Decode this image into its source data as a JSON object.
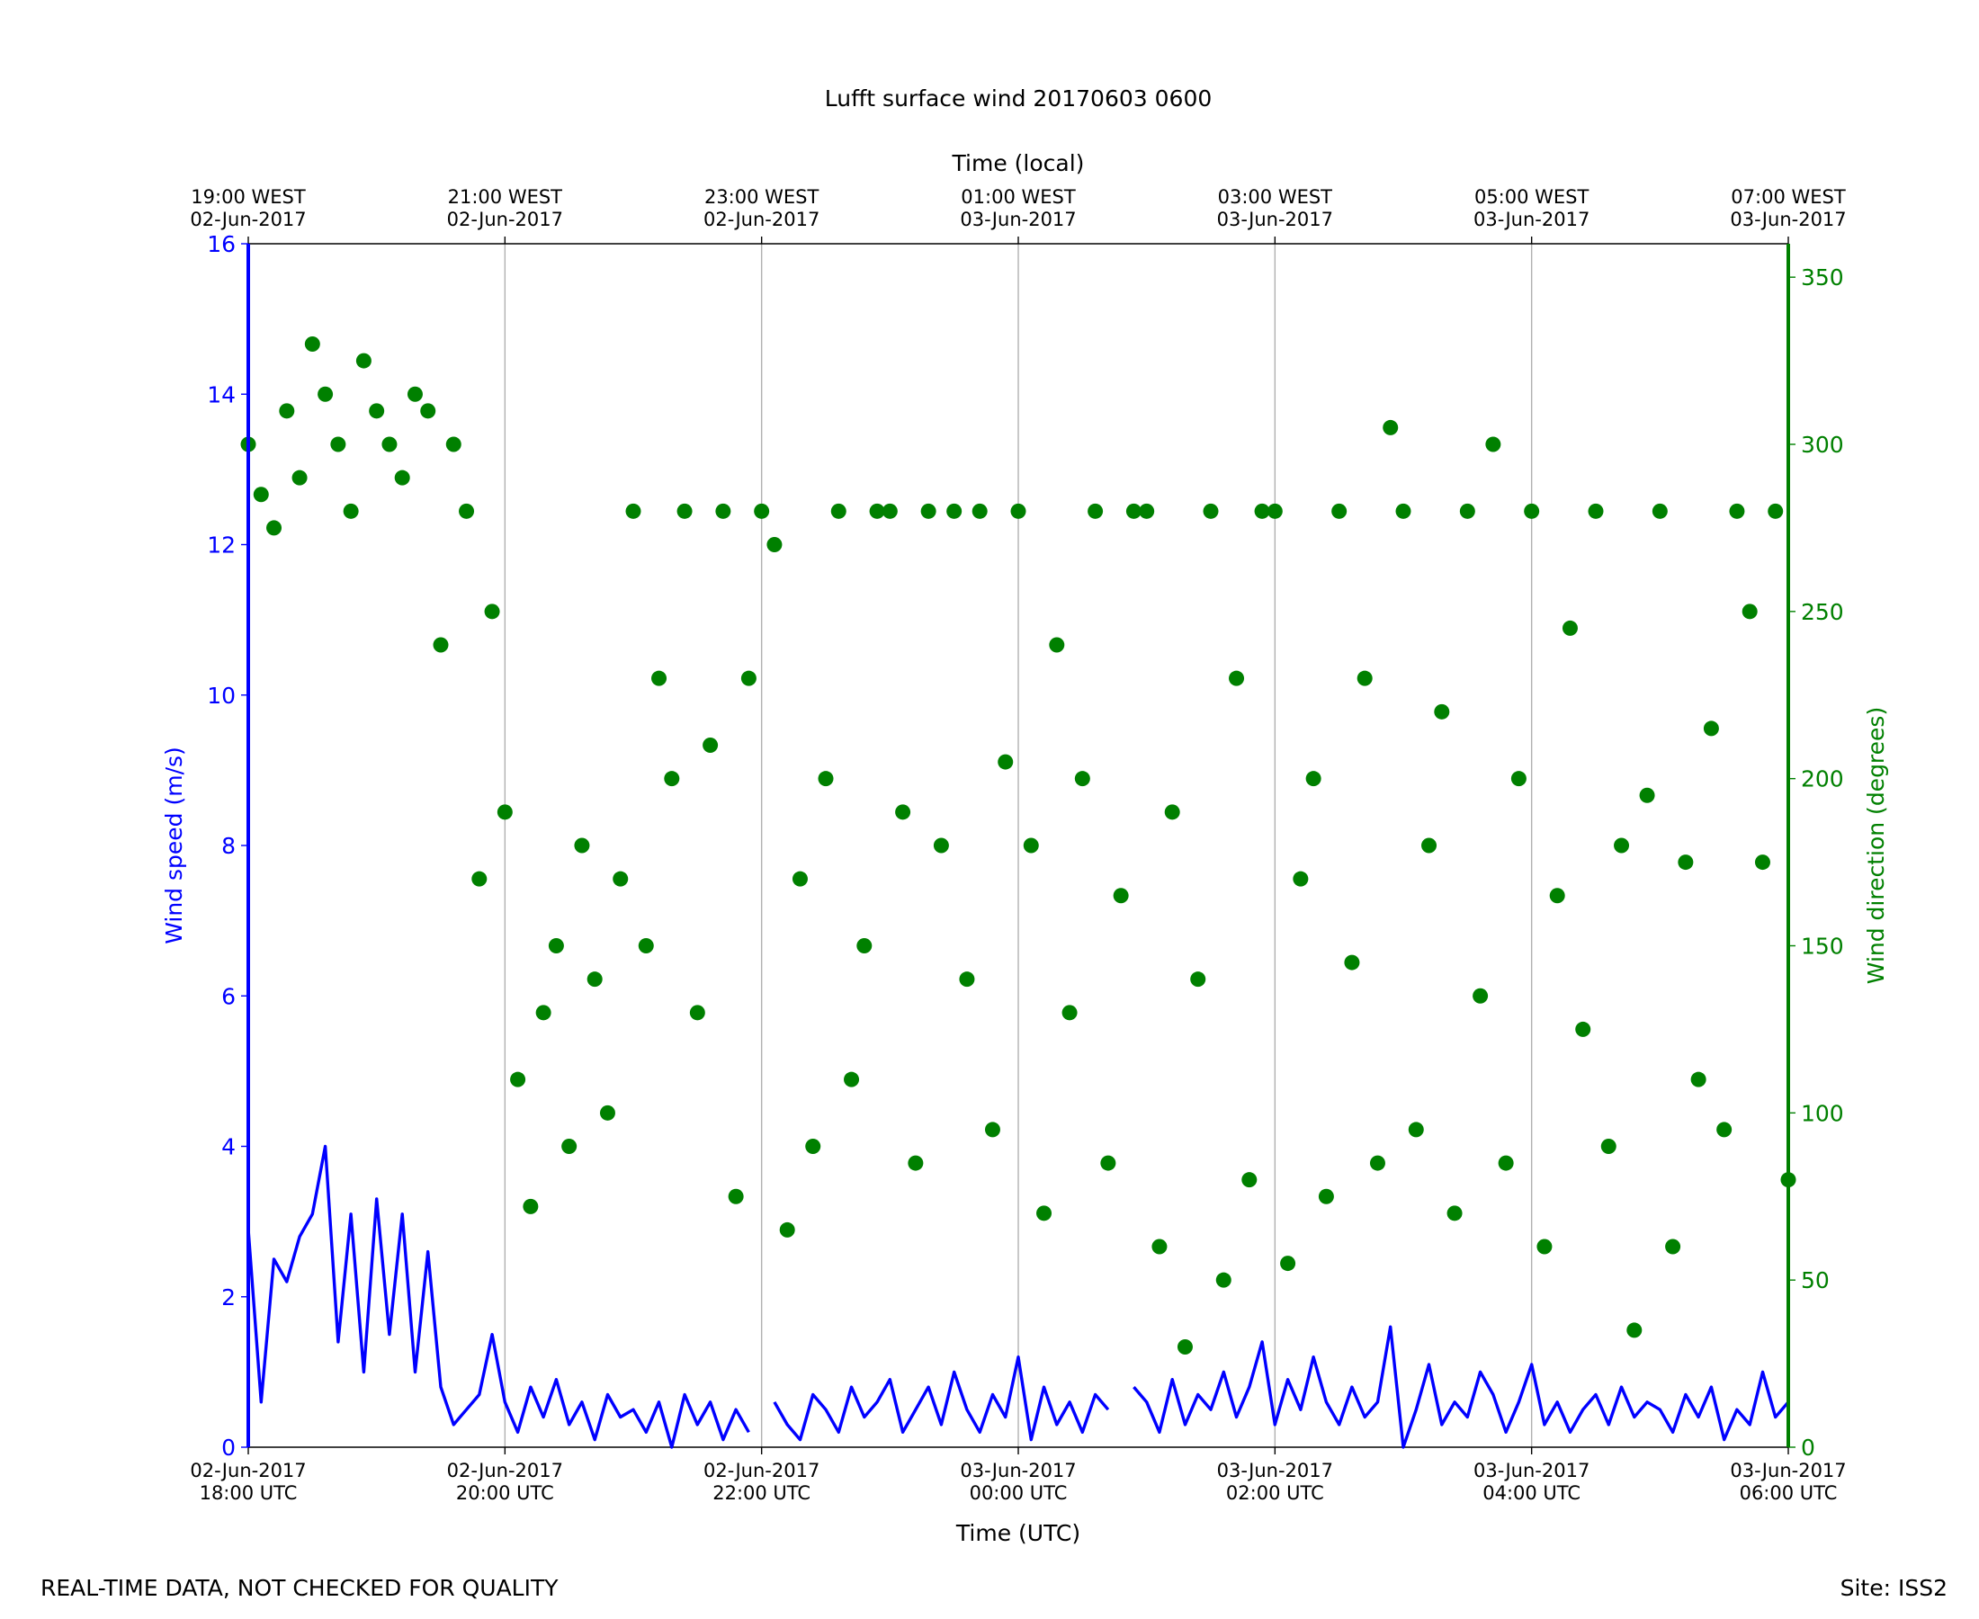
{
  "chart_data": {
    "type": "line",
    "title": "Lufft surface wind 20170603 0600",
    "xlabel": "Time (UTC)",
    "x2label": "Time (local)",
    "ylabel": "Wind speed (m/s)",
    "y2label": "Wind direction (degrees)",
    "footer_left": "REAL-TIME DATA, NOT CHECKED FOR QUALITY",
    "footer_right": "Site: ISS2",
    "xlim": [
      18,
      30
    ],
    "xticks": [
      {
        "value": 18,
        "label": "02-Jun-2017\n18:00 UTC"
      },
      {
        "value": 20,
        "label": "02-Jun-2017\n20:00 UTC"
      },
      {
        "value": 22,
        "label": "02-Jun-2017\n22:00 UTC"
      },
      {
        "value": 24,
        "label": "03-Jun-2017\n00:00 UTC"
      },
      {
        "value": 26,
        "label": "03-Jun-2017\n02:00 UTC"
      },
      {
        "value": 28,
        "label": "03-Jun-2017\n04:00 UTC"
      },
      {
        "value": 30,
        "label": "03-Jun-2017\n06:00 UTC"
      }
    ],
    "x2ticks": [
      {
        "value": 18,
        "label": "19:00 WEST\n02-Jun-2017"
      },
      {
        "value": 20,
        "label": "21:00 WEST\n02-Jun-2017"
      },
      {
        "value": 22,
        "label": "23:00 WEST\n02-Jun-2017"
      },
      {
        "value": 24,
        "label": "01:00 WEST\n03-Jun-2017"
      },
      {
        "value": 26,
        "label": "03:00 WEST\n03-Jun-2017"
      },
      {
        "value": 28,
        "label": "05:00 WEST\n03-Jun-2017"
      },
      {
        "value": 30,
        "label": "07:00 WEST\n03-Jun-2017"
      }
    ],
    "ylim": [
      0,
      16
    ],
    "yticks": [
      0,
      2,
      4,
      6,
      8,
      10,
      12,
      14,
      16
    ],
    "y2lim": [
      0,
      360
    ],
    "y2ticks": [
      0,
      50,
      100,
      150,
      200,
      250,
      300,
      350
    ],
    "grid": "x",
    "x": [
      18.0,
      18.1,
      18.2,
      18.3,
      18.4,
      18.5,
      18.6,
      18.7,
      18.8,
      18.9,
      19.0,
      19.1,
      19.2,
      19.3,
      19.4,
      19.5,
      19.6,
      19.7,
      19.8,
      19.9,
      20.0,
      20.1,
      20.2,
      20.3,
      20.4,
      20.5,
      20.6,
      20.7,
      20.8,
      20.9,
      21.0,
      21.1,
      21.2,
      21.3,
      21.4,
      21.5,
      21.6,
      21.7,
      21.8,
      21.9,
      22.0,
      22.1,
      22.2,
      22.3,
      22.4,
      22.5,
      22.6,
      22.7,
      22.8,
      22.9,
      23.0,
      23.1,
      23.2,
      23.3,
      23.4,
      23.5,
      23.6,
      23.7,
      23.8,
      23.9,
      24.0,
      24.1,
      24.2,
      24.3,
      24.4,
      24.5,
      24.6,
      24.7,
      24.8,
      24.9,
      25.0,
      25.1,
      25.2,
      25.3,
      25.4,
      25.5,
      25.6,
      25.7,
      25.8,
      25.9,
      26.0,
      26.1,
      26.2,
      26.3,
      26.4,
      26.5,
      26.6,
      26.7,
      26.8,
      26.9,
      27.0,
      27.1,
      27.2,
      27.3,
      27.4,
      27.5,
      27.6,
      27.7,
      27.8,
      27.9,
      28.0,
      28.1,
      28.2,
      28.3,
      28.4,
      28.5,
      28.6,
      28.7,
      28.8,
      28.9,
      29.0,
      29.1,
      29.2,
      29.3,
      29.4,
      29.5,
      29.6,
      29.7,
      29.8,
      29.9,
      30.0
    ],
    "series": [
      {
        "name": "Wind speed",
        "type": "line",
        "color": "#0000ff",
        "values": [
          2.9,
          0.6,
          2.5,
          2.2,
          2.8,
          3.1,
          4.0,
          1.4,
          3.1,
          1.0,
          3.3,
          1.5,
          3.1,
          1.0,
          2.6,
          0.8,
          0.3,
          0.5,
          0.7,
          1.5,
          0.6,
          0.2,
          0.8,
          0.4,
          0.9,
          0.3,
          0.6,
          0.1,
          0.7,
          0.4,
          0.5,
          0.2,
          0.6,
          0.0,
          0.7,
          0.3,
          0.6,
          0.1,
          0.5,
          0.2,
          null,
          0.6,
          0.3,
          0.1,
          0.7,
          0.5,
          0.2,
          0.8,
          0.4,
          0.6,
          0.9,
          0.2,
          0.5,
          0.8,
          0.3,
          1.0,
          0.5,
          0.2,
          0.7,
          0.4,
          1.2,
          0.1,
          0.8,
          0.3,
          0.6,
          0.2,
          0.7,
          0.5,
          null,
          0.8,
          0.6,
          0.2,
          0.9,
          0.3,
          0.7,
          0.5,
          1.0,
          0.4,
          0.8,
          1.4,
          0.3,
          0.9,
          0.5,
          1.2,
          0.6,
          0.3,
          0.8,
          0.4,
          0.6,
          1.6,
          0.0,
          0.5,
          1.1,
          0.3,
          0.6,
          0.4,
          1.0,
          0.7,
          0.2,
          0.6,
          1.1,
          0.3,
          0.6,
          0.2,
          0.5,
          0.7,
          0.3,
          0.8,
          0.4,
          0.6,
          0.5,
          0.2,
          0.7,
          0.4,
          0.8,
          0.1,
          0.5,
          0.3,
          1.0,
          0.4,
          0.6
        ]
      },
      {
        "name": "Wind direction",
        "type": "scatter",
        "axis": "y2",
        "color": "#008000",
        "values": [
          300,
          285,
          275,
          310,
          290,
          330,
          315,
          300,
          280,
          325,
          310,
          300,
          290,
          315,
          310,
          240,
          300,
          280,
          170,
          250,
          190,
          110,
          72,
          130,
          150,
          90,
          180,
          140,
          100,
          170,
          280,
          150,
          230,
          200,
          280,
          130,
          210,
          280,
          75,
          230,
          280,
          270,
          65,
          170,
          90,
          200,
          280,
          110,
          150,
          280,
          280,
          190,
          85,
          280,
          180,
          280,
          140,
          280,
          95,
          205,
          280,
          180,
          70,
          240,
          130,
          200,
          280,
          85,
          165,
          280,
          280,
          60,
          190,
          30,
          140,
          280,
          50,
          230,
          80,
          280,
          280,
          55,
          170,
          200,
          75,
          280,
          145,
          230,
          85,
          305,
          280,
          95,
          180,
          220,
          70,
          280,
          135,
          300,
          85,
          200,
          280,
          60,
          165,
          245,
          125,
          280,
          90,
          180,
          35,
          195,
          280,
          60,
          175,
          110,
          215,
          95,
          280,
          250,
          175,
          280,
          80
        ]
      }
    ]
  }
}
